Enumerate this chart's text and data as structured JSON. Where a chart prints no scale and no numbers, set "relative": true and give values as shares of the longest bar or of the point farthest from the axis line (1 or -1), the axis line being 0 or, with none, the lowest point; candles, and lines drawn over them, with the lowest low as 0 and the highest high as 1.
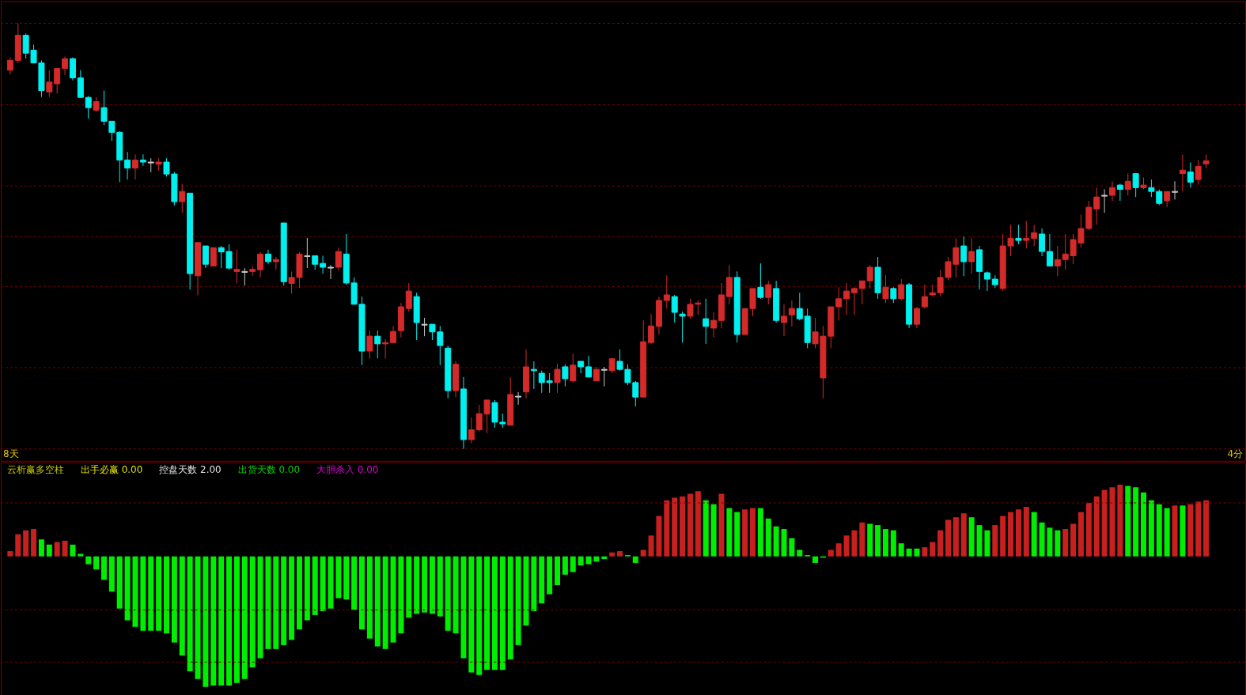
{
  "chart_data": [
    {
      "type": "candlestick",
      "relative": true,
      "categories": [
        null,
        null,
        null,
        null,
        null,
        null,
        null,
        null,
        null,
        null,
        null,
        null,
        null,
        null,
        null,
        null,
        null,
        null,
        null,
        null,
        null,
        null,
        null,
        null,
        null,
        null,
        null,
        null,
        null,
        null,
        null,
        null,
        null,
        null,
        null,
        null,
        null,
        null,
        null,
        null,
        null,
        null,
        null,
        null,
        null,
        null,
        null,
        null,
        null,
        null,
        null,
        null,
        null,
        null,
        null,
        null,
        null,
        null,
        null,
        null,
        null,
        null,
        null,
        null,
        null,
        null,
        null,
        null,
        null,
        null,
        null,
        null,
        null,
        null,
        null,
        null,
        null,
        null,
        null,
        null,
        null,
        null,
        null,
        null,
        null,
        null,
        null,
        null,
        null,
        null,
        null,
        null,
        null,
        null,
        null,
        null,
        null,
        null,
        null,
        null,
        null,
        null,
        null,
        null,
        null,
        null,
        null,
        null,
        null,
        null,
        null,
        null,
        null,
        null,
        null,
        null,
        null,
        null,
        null,
        null,
        null,
        null,
        null,
        null,
        null,
        null,
        null,
        null,
        null,
        null,
        null,
        null,
        null,
        null,
        null,
        null,
        null,
        null,
        null,
        null,
        null,
        null,
        null,
        null,
        null,
        null,
        null,
        null,
        null,
        null,
        null,
        null,
        null,
        null
      ],
      "ohlc": [
        [
          0.89,
          0.92,
          0.88,
          0.913
        ],
        [
          0.913,
          1,
          0.907,
          0.972
        ],
        [
          0.972,
          0.976,
          0.917,
          0.93
        ],
        [
          0.937,
          0.95,
          0.907,
          0.907
        ],
        [
          0.907,
          0.913,
          0.827,
          0.842
        ],
        [
          0.839,
          0.89,
          0.827,
          0.862
        ],
        [
          0.858,
          0.894,
          0.835,
          0.894
        ],
        [
          0.894,
          0.922,
          0.879,
          0.917
        ],
        [
          0.917,
          0.92,
          0.866,
          0.872
        ],
        [
          0.872,
          0.89,
          0.826,
          0.826
        ],
        [
          0.826,
          0.829,
          0.776,
          0.802
        ],
        [
          0.796,
          0.826,
          0.792,
          0.816
        ],
        [
          0.802,
          0.842,
          0.761,
          0.77
        ],
        [
          0.77,
          0.77,
          0.724,
          0.744
        ],
        [
          0.744,
          0.747,
          0.627,
          0.679
        ],
        [
          0.679,
          0.698,
          0.633,
          0.66
        ],
        [
          0.66,
          0.692,
          0.633,
          0.679
        ],
        [
          0.679,
          0.692,
          0.665,
          0.674
        ],
        [
          0.674,
          0.683,
          0.65,
          0.672
        ],
        [
          0.669,
          0.683,
          0.654,
          0.674
        ],
        [
          0.674,
          0.683,
          0.64,
          0.646
        ],
        [
          0.646,
          0.651,
          0.572,
          0.581
        ],
        [
          0.581,
          0.623,
          0.555,
          0.605
        ],
        [
          0.601,
          0.601,
          0.375,
          0.412
        ],
        [
          0.407,
          0.485,
          0.361,
          0.485
        ],
        [
          0.477,
          0.477,
          0.425,
          0.434
        ],
        [
          0.43,
          0.473,
          0.43,
          0.473
        ],
        [
          0.473,
          0.477,
          0.425,
          0.463
        ],
        [
          0.464,
          0.481,
          0.421,
          0.425
        ],
        [
          0.417,
          0.468,
          0.389,
          0.422
        ],
        [
          0.417,
          0.425,
          0.384,
          0.415
        ],
        [
          0.417,
          0.43,
          0.407,
          0.422
        ],
        [
          0.421,
          0.463,
          0.403,
          0.458
        ],
        [
          0.458,
          0.468,
          0.434,
          0.44
        ],
        [
          0.44,
          0.451,
          0.421,
          0.445
        ],
        [
          0.531,
          0.531,
          0.384,
          0.393
        ],
        [
          0.389,
          0.417,
          0.365,
          0.403
        ],
        [
          0.403,
          0.463,
          0.378,
          0.458
        ],
        [
          0.454,
          0.496,
          0.425,
          0.452
        ],
        [
          0.454,
          0.454,
          0.421,
          0.434
        ],
        [
          0.436,
          0.454,
          0.412,
          0.427
        ],
        [
          0.427,
          0.432,
          0.399,
          0.425
        ],
        [
          0.427,
          0.473,
          0.419,
          0.464
        ],
        [
          0.458,
          0.505,
          0.386,
          0.39
        ],
        [
          0.39,
          0.403,
          0.34,
          0.34
        ],
        [
          0.34,
          0.358,
          0.197,
          0.23
        ],
        [
          0.23,
          0.278,
          0.212,
          0.265
        ],
        [
          0.265,
          0.278,
          0.213,
          0.247
        ],
        [
          0.247,
          0.258,
          0.212,
          0.25
        ],
        [
          0.25,
          0.289,
          0.25,
          0.276
        ],
        [
          0.278,
          0.343,
          0.262,
          0.334
        ],
        [
          0.33,
          0.39,
          0.323,
          0.371
        ],
        [
          0.358,
          0.367,
          0.256,
          0.297
        ],
        [
          0.293,
          0.308,
          0.265,
          0.291
        ],
        [
          0.293,
          0.293,
          0.256,
          0.275
        ],
        [
          0.275,
          0.289,
          0.197,
          0.243
        ],
        [
          0.237,
          0.243,
          0.119,
          0.137
        ],
        [
          0.137,
          0.206,
          0.122,
          0.199
        ],
        [
          0.141,
          0.169,
          0,
          0.022
        ],
        [
          0.022,
          0.074,
          0.013,
          0.045
        ],
        [
          0.045,
          0.104,
          0.041,
          0.083
        ],
        [
          0.082,
          0.115,
          0.037,
          0.115
        ],
        [
          0.109,
          0.115,
          0.05,
          0.063
        ],
        [
          0.063,
          0.083,
          0.05,
          0.059
        ],
        [
          0.056,
          0.169,
          0.056,
          0.128
        ],
        [
          0.124,
          0.134,
          0.104,
          0.122
        ],
        [
          0.134,
          0.234,
          0.119,
          0.193
        ],
        [
          0.187,
          0.206,
          0.141,
          0.184
        ],
        [
          0.178,
          0.184,
          0.132,
          0.156
        ],
        [
          0.16,
          0.178,
          0.132,
          0.156
        ],
        [
          0.156,
          0.2,
          0.132,
          0.187
        ],
        [
          0.193,
          0.199,
          0.147,
          0.165
        ],
        [
          0.16,
          0.224,
          0.156,
          0.197
        ],
        [
          0.206,
          0.206,
          0.178,
          0.193
        ],
        [
          0.193,
          0.219,
          0.169,
          0.169
        ],
        [
          0.16,
          0.193,
          0.16,
          0.187
        ],
        [
          0.187,
          0.193,
          0.147,
          0.185
        ],
        [
          0.184,
          0.212,
          0.178,
          0.212
        ],
        [
          0.206,
          0.234,
          0.184,
          0.187
        ],
        [
          0.187,
          0.199,
          0.15,
          0.156
        ],
        [
          0.156,
          0.16,
          0.1,
          0.122
        ],
        [
          0.122,
          0.302,
          0.122,
          0.252
        ],
        [
          0.25,
          0.317,
          0.247,
          0.289
        ],
        [
          0.288,
          0.358,
          0.269,
          0.349
        ],
        [
          0.349,
          0.408,
          0.33,
          0.362
        ],
        [
          0.358,
          0.362,
          0.297,
          0.321
        ],
        [
          0.317,
          0.323,
          0.25,
          0.312
        ],
        [
          0.312,
          0.353,
          0.306,
          0.34
        ],
        [
          0.34,
          0.349,
          0.315,
          0.343
        ],
        [
          0.306,
          0.353,
          0.247,
          0.288
        ],
        [
          0.284,
          0.321,
          0.262,
          0.302
        ],
        [
          0.302,
          0.39,
          0.284,
          0.362
        ],
        [
          0.358,
          0.432,
          0.34,
          0.403
        ],
        [
          0.403,
          0.417,
          0.25,
          0.269
        ],
        [
          0.269,
          0.33,
          0.269,
          0.33
        ],
        [
          0.33,
          0.377,
          0.312,
          0.377
        ],
        [
          0.38,
          0.436,
          0.353,
          0.356
        ],
        [
          0.356,
          0.395,
          0.34,
          0.386
        ],
        [
          0.377,
          0.395,
          0.297,
          0.302
        ],
        [
          0.297,
          0.34,
          0.265,
          0.312
        ],
        [
          0.315,
          0.349,
          0.288,
          0.33
        ],
        [
          0.33,
          0.367,
          0.302,
          0.306
        ],
        [
          0.312,
          0.33,
          0.237,
          0.25
        ],
        [
          0.247,
          0.308,
          0.237,
          0.275
        ],
        [
          0.167,
          0.289,
          0.119,
          0.265
        ],
        [
          0.265,
          0.334,
          0.237,
          0.334
        ],
        [
          0.334,
          0.38,
          0.302,
          0.353
        ],
        [
          0.353,
          0.39,
          0.315,
          0.371
        ],
        [
          0.367,
          0.38,
          0.315,
          0.377
        ],
        [
          0.377,
          0.395,
          0.34,
          0.395
        ],
        [
          0.395,
          0.432,
          0.377,
          0.427
        ],
        [
          0.427,
          0.451,
          0.353,
          0.367
        ],
        [
          0.353,
          0.408,
          0.343,
          0.38
        ],
        [
          0.377,
          0.38,
          0.343,
          0.353
        ],
        [
          0.353,
          0.399,
          0.349,
          0.386
        ],
        [
          0.386,
          0.39,
          0.284,
          0.293
        ],
        [
          0.293,
          0.334,
          0.284,
          0.33
        ],
        [
          0.334,
          0.386,
          0.33,
          0.358
        ],
        [
          0.362,
          0.386,
          0.358,
          0.367
        ],
        [
          0.367,
          0.421,
          0.358,
          0.403
        ],
        [
          0.403,
          0.451,
          0.397,
          0.44
        ],
        [
          0.434,
          0.495,
          0.403,
          0.473
        ],
        [
          0.477,
          0.499,
          0.406,
          0.44
        ],
        [
          0.44,
          0.495,
          0.412,
          0.464
        ],
        [
          0.468,
          0.477,
          0.375,
          0.417
        ],
        [
          0.414,
          0.417,
          0.371,
          0.399
        ],
        [
          0.399,
          0.408,
          0.378,
          0.386
        ],
        [
          0.377,
          0.505,
          0.371,
          0.477
        ],
        [
          0.477,
          0.527,
          0.453,
          0.495
        ],
        [
          0.495,
          0.527,
          0.481,
          0.49
        ],
        [
          0.49,
          0.536,
          0.471,
          0.495
        ],
        [
          0.495,
          0.527,
          0.477,
          0.508
        ],
        [
          0.505,
          0.518,
          0.453,
          0.464
        ],
        [
          0.464,
          0.505,
          0.43,
          0.43
        ],
        [
          0.43,
          0.477,
          0.406,
          0.445
        ],
        [
          0.445,
          0.505,
          0.421,
          0.458
        ],
        [
          0.454,
          0.505,
          0.434,
          0.492
        ],
        [
          0.484,
          0.551,
          0.473,
          0.518
        ],
        [
          0.518,
          0.583,
          0.514,
          0.568
        ],
        [
          0.564,
          0.614,
          0.527,
          0.592
        ],
        [
          0.596,
          0.61,
          0.555,
          0.594
        ],
        [
          0.596,
          0.629,
          0.583,
          0.614
        ],
        [
          0.62,
          0.623,
          0.583,
          0.61
        ],
        [
          0.61,
          0.647,
          0.596,
          0.629
        ],
        [
          0.647,
          0.647,
          0.592,
          0.614
        ],
        [
          0.614,
          0.638,
          0.61,
          0.62
        ],
        [
          0.614,
          0.633,
          0.592,
          0.605
        ],
        [
          0.605,
          0.61,
          0.573,
          0.577
        ],
        [
          0.583,
          0.605,
          0.568,
          0.605
        ],
        [
          0.605,
          0.629,
          0.586,
          0.603
        ],
        [
          0.647,
          0.692,
          0.605,
          0.655
        ],
        [
          0.651,
          0.673,
          0.614,
          0.627
        ],
        [
          0.633,
          0.679,
          0.621,
          0.664
        ],
        [
          0.67,
          0.692,
          0.659,
          0.677
        ]
      ],
      "ref_lines": [
        {
          "axis": "y",
          "value": 1,
          "color": "#7a0000",
          "line_style": "dashed"
        },
        {
          "axis": "y",
          "value": 0.809,
          "color": "#7a0000",
          "line_style": "dashed"
        },
        {
          "axis": "y",
          "value": 0.618,
          "color": "#7a0000",
          "line_style": "dashed"
        },
        {
          "axis": "y",
          "value": 0.499,
          "color": "#7a0000",
          "line_style": "dashed"
        },
        {
          "axis": "y",
          "value": 0.382,
          "color": "#7a0000",
          "line_style": "dashed"
        },
        {
          "axis": "y",
          "value": 0.191,
          "color": "#7a0000",
          "line_style": "dashed"
        },
        {
          "axis": "y",
          "value": 0,
          "color": "#7a0000",
          "line_style": "dashed"
        }
      ],
      "annotations": [
        "8天",
        "4分"
      ]
    },
    {
      "type": "bar",
      "relative": true,
      "title": "云析赢多空柱",
      "categories": [
        null,
        null,
        null,
        null,
        null,
        null,
        null,
        null,
        null,
        null,
        null,
        null,
        null,
        null,
        null,
        null,
        null,
        null,
        null,
        null,
        null,
        null,
        null,
        null,
        null,
        null,
        null,
        null,
        null,
        null,
        null,
        null,
        null,
        null,
        null,
        null,
        null,
        null,
        null,
        null,
        null,
        null,
        null,
        null,
        null,
        null,
        null,
        null,
        null,
        null,
        null,
        null,
        null,
        null,
        null,
        null,
        null,
        null,
        null,
        null,
        null,
        null,
        null,
        null,
        null,
        null,
        null,
        null,
        null,
        null,
        null,
        null,
        null,
        null,
        null,
        null,
        null,
        null,
        null,
        null,
        null,
        null,
        null,
        null,
        null,
        null,
        null,
        null,
        null,
        null,
        null,
        null,
        null,
        null,
        null,
        null,
        null,
        null,
        null,
        null,
        null,
        null,
        null,
        null,
        null,
        null,
        null,
        null,
        null,
        null,
        null,
        null,
        null,
        null,
        null,
        null,
        null,
        null,
        null,
        null,
        null,
        null,
        null,
        null,
        null,
        null,
        null,
        null,
        null,
        null,
        null,
        null,
        null,
        null,
        null,
        null,
        null,
        null,
        null,
        null,
        null,
        null,
        null,
        null,
        null,
        null,
        null,
        null,
        null,
        null,
        null,
        null,
        null,
        null
      ],
      "values": [
        0.04,
        0.17,
        0.2,
        0.21,
        0.13,
        0.09,
        0.11,
        0.12,
        0.09,
        0.02,
        -0.06,
        -0.1,
        -0.18,
        -0.27,
        -0.4,
        -0.49,
        -0.54,
        -0.57,
        -0.57,
        -0.57,
        -0.59,
        -0.66,
        -0.76,
        -0.88,
        -0.94,
        -1,
        -0.99,
        -0.99,
        -0.99,
        -0.97,
        -0.94,
        -0.85,
        -0.78,
        -0.71,
        -0.71,
        -0.68,
        -0.64,
        -0.56,
        -0.49,
        -0.45,
        -0.42,
        -0.4,
        -0.32,
        -0.33,
        -0.41,
        -0.56,
        -0.63,
        -0.69,
        -0.71,
        -0.66,
        -0.59,
        -0.47,
        -0.44,
        -0.43,
        -0.44,
        -0.46,
        -0.57,
        -0.59,
        -0.78,
        -0.89,
        -0.91,
        -0.87,
        -0.87,
        -0.87,
        -0.79,
        -0.68,
        -0.53,
        -0.42,
        -0.36,
        -0.29,
        -0.22,
        -0.14,
        -0.12,
        -0.07,
        -0.06,
        -0.04,
        -0.02,
        0.03,
        0.04,
        0.01,
        -0.05,
        0.05,
        0.16,
        0.31,
        0.43,
        0.45,
        0.46,
        0.48,
        0.5,
        0.43,
        0.4,
        0.48,
        0.37,
        0.34,
        0.36,
        0.37,
        0.37,
        0.29,
        0.23,
        0.21,
        0.14,
        0.05,
        0.01,
        -0.05,
        -0.01,
        0.05,
        0.1,
        0.16,
        0.2,
        0.26,
        0.25,
        0.24,
        0.21,
        0.2,
        0.1,
        0.06,
        0.06,
        0.07,
        0.11,
        0.2,
        0.28,
        0.3,
        0.33,
        0.3,
        0.24,
        0.2,
        0.24,
        0.31,
        0.34,
        0.36,
        0.38,
        0.34,
        0.26,
        0.22,
        0.2,
        0.21,
        0.25,
        0.34,
        0.41,
        0.46,
        0.51,
        0.53,
        0.55,
        0.54,
        0.53,
        0.49,
        0.43,
        0.4,
        0.37,
        0.39,
        0.39,
        0.4,
        0.42,
        0.43
      ],
      "colors": [
        "#c8201e",
        "#c8201e",
        "#c8201e",
        "#c8201e",
        "#00ee00",
        "#00ee00",
        "#c8201e",
        "#c8201e",
        "#00ee00",
        "#00ee00",
        "#00ee00",
        "#00ee00",
        "#00ee00",
        "#00ee00",
        "#00ee00",
        "#00ee00",
        "#00ee00",
        "#00ee00",
        "#00ee00",
        "#00ee00",
        "#00ee00",
        "#00ee00",
        "#00ee00",
        "#00ee00",
        "#00ee00",
        "#00ee00",
        "#00ee00",
        "#00ee00",
        "#00ee00",
        "#00ee00",
        "#00ee00",
        "#00ee00",
        "#00ee00",
        "#00ee00",
        "#00ee00",
        "#00ee00",
        "#00ee00",
        "#00ee00",
        "#00ee00",
        "#00ee00",
        "#00ee00",
        "#00ee00",
        "#00ee00",
        "#00ee00",
        "#00ee00",
        "#00ee00",
        "#00ee00",
        "#00ee00",
        "#00ee00",
        "#00ee00",
        "#00ee00",
        "#00ee00",
        "#00ee00",
        "#00ee00",
        "#00ee00",
        "#00ee00",
        "#00ee00",
        "#00ee00",
        "#00ee00",
        "#00ee00",
        "#00ee00",
        "#00ee00",
        "#00ee00",
        "#00ee00",
        "#00ee00",
        "#00ee00",
        "#00ee00",
        "#00ee00",
        "#00ee00",
        "#00ee00",
        "#00ee00",
        "#00ee00",
        "#00ee00",
        "#00ee00",
        "#00ee00",
        "#00ee00",
        "#00ee00",
        "#c8201e",
        "#c8201e",
        "#00ee00",
        "#00ee00",
        "#c8201e",
        "#c8201e",
        "#c8201e",
        "#c8201e",
        "#c8201e",
        "#c8201e",
        "#c8201e",
        "#c8201e",
        "#00ee00",
        "#00ee00",
        "#c8201e",
        "#00ee00",
        "#00ee00",
        "#c8201e",
        "#c8201e",
        "#00ee00",
        "#00ee00",
        "#00ee00",
        "#00ee00",
        "#00ee00",
        "#00ee00",
        "#00ee00",
        "#00ee00",
        "#00ee00",
        "#c8201e",
        "#c8201e",
        "#c8201e",
        "#c8201e",
        "#c8201e",
        "#00ee00",
        "#00ee00",
        "#00ee00",
        "#00ee00",
        "#00ee00",
        "#00ee00",
        "#00ee00",
        "#c8201e",
        "#c8201e",
        "#c8201e",
        "#c8201e",
        "#c8201e",
        "#c8201e",
        "#00ee00",
        "#00ee00",
        "#00ee00",
        "#c8201e",
        "#c8201e",
        "#c8201e",
        "#c8201e",
        "#c8201e",
        "#00ee00",
        "#00ee00",
        "#00ee00",
        "#00ee00",
        "#c8201e",
        "#c8201e",
        "#c8201e",
        "#c8201e",
        "#c8201e",
        "#c8201e",
        "#c8201e",
        "#c8201e",
        "#00ee00",
        "#00ee00",
        "#00ee00",
        "#00ee00",
        "#00ee00",
        "#00ee00",
        "#c8201e",
        "#00ee00",
        "#c8201e",
        "#c8201e",
        "#c8201e"
      ],
      "ref_lines": [
        {
          "axis": "y",
          "value": 0.41,
          "color": "#7a0000",
          "line_style": "dashed"
        },
        {
          "axis": "y",
          "value": -0.41,
          "color": "#7a0000",
          "line_style": "dashed"
        },
        {
          "axis": "y",
          "value": -0.81,
          "color": "#7a0000",
          "line_style": "dashed"
        }
      ],
      "annotations": [
        "出手必赢 0.00",
        "控盘天数 2.00",
        "出货天数 0.00",
        "大胆杀入 0.00"
      ]
    }
  ]
}
